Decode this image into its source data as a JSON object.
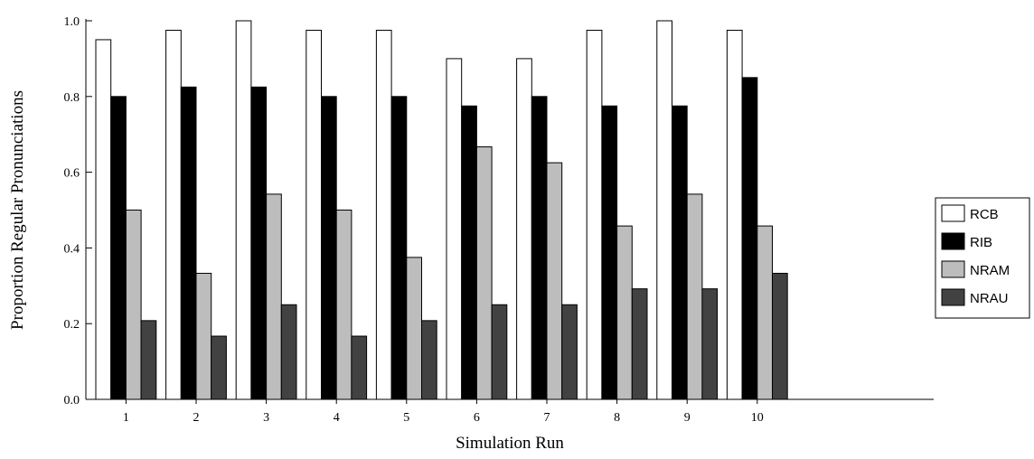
{
  "chart_data": {
    "type": "bar",
    "xlabel": "Simulation Run",
    "ylabel": "Proportion Regular Pronunciations",
    "ylim": [
      0,
      1.0
    ],
    "yticks": [
      "0.0",
      "0.2",
      "0.4",
      "0.6",
      "0.8",
      "1.0"
    ],
    "grid": false,
    "legend_position": "right",
    "categories": [
      "1",
      "2",
      "3",
      "4",
      "5",
      "6",
      "7",
      "8",
      "9",
      "10"
    ],
    "series": [
      {
        "name": "RCB",
        "color": "#ffffff",
        "values": [
          0.95,
          0.975,
          1.0,
          0.975,
          0.975,
          0.9,
          0.9,
          0.975,
          1.0,
          0.975
        ]
      },
      {
        "name": "RIB",
        "color": "#000000",
        "values": [
          0.8,
          0.825,
          0.825,
          0.8,
          0.8,
          0.775,
          0.8,
          0.775,
          0.775,
          0.85
        ]
      },
      {
        "name": "NRAM",
        "color": "#bdbdbd",
        "values": [
          0.5,
          0.333,
          0.542,
          0.5,
          0.375,
          0.667,
          0.625,
          0.458,
          0.542,
          0.458
        ]
      },
      {
        "name": "NRAU",
        "color": "#424242",
        "values": [
          0.208,
          0.167,
          0.25,
          0.167,
          0.208,
          0.25,
          0.25,
          0.292,
          0.292,
          0.333
        ]
      }
    ]
  }
}
